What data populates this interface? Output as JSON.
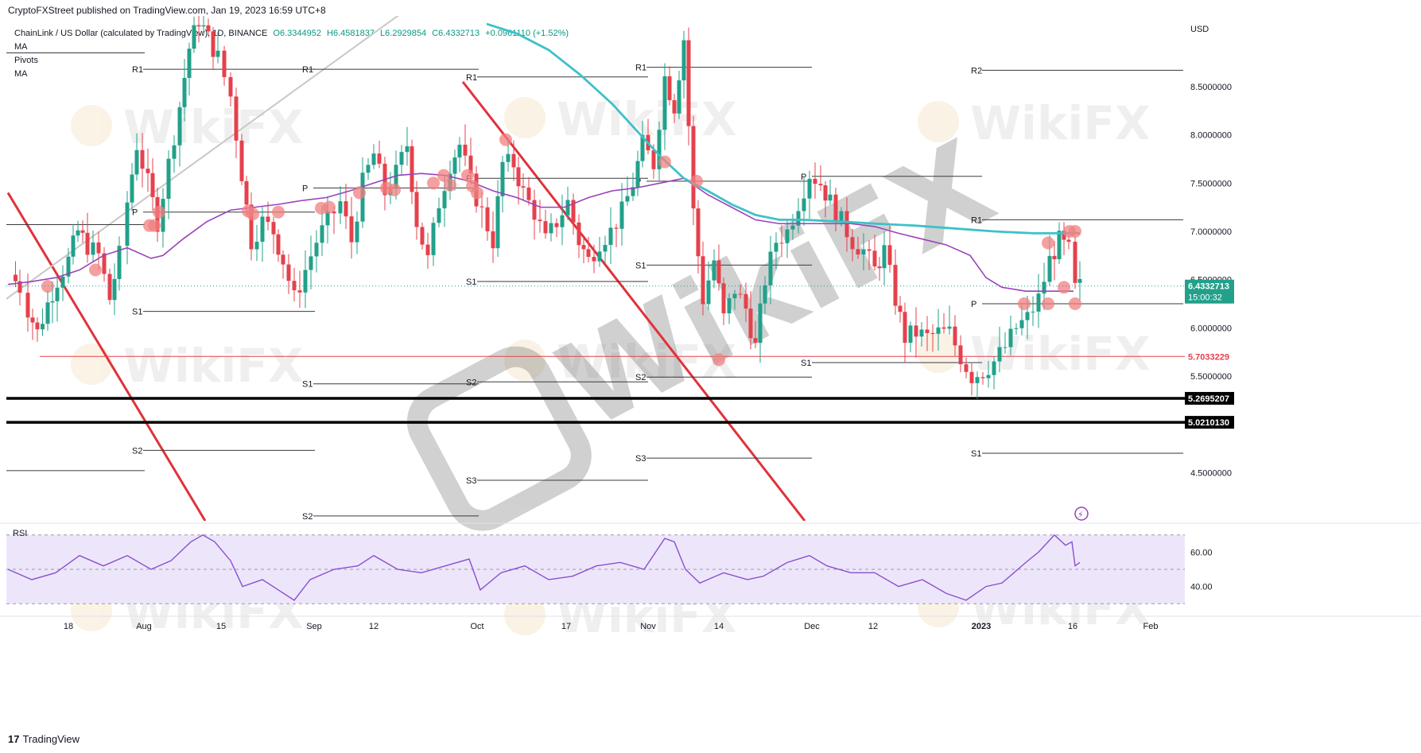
{
  "header": {
    "published": "CryptoFXStreet published on TradingView.com, Jan 19, 2023 16:59 UTC+8"
  },
  "legend": {
    "symbol": "ChainLink / US Dollar (calculated by TradingView), 1D, BINANCE",
    "o": "O6.3344952",
    "h": "H6.4581837",
    "l": "L6.2929854",
    "c": "C6.4332713",
    "chg": "+0.0961110 (+1.52%)",
    "indicators": [
      "MA",
      "Pivots",
      "MA"
    ]
  },
  "footer": {
    "brand_glyph": "17",
    "brand": "TradingView"
  },
  "watermark": {
    "text": "WikiFX"
  },
  "colors": {
    "up": "#22a08a",
    "down": "#e5414c",
    "ma_fast": "#9a42b8",
    "ma_slow": "#3ec1c9",
    "trendline": "#e0323c",
    "channel": "#c8c8c8",
    "marker": "#f08080",
    "rsi_line": "#8a4fd0",
    "rsi_band": "#ede6fb"
  },
  "chart_data": [
    {
      "type": "candlestick",
      "title": "ChainLink / US Dollar",
      "ylabel": "USD",
      "ylim": [
        4.0,
        9.2
      ],
      "y_ticks": [
        "8.5000000",
        "8.0000000",
        "7.5000000",
        "7.0000000",
        "6.5000000",
        "6.0000000",
        "5.5000000",
        "4.5000000"
      ],
      "x_ticks": [
        "18",
        "Aug",
        "15",
        "Sep",
        "12",
        "Oct",
        "17",
        "Nov",
        "14",
        "Dec",
        "12",
        "2023",
        "16",
        "Feb"
      ],
      "price_labels": [
        {
          "value": 6.4332713,
          "text": "6.4332713",
          "sub": "15:00:32",
          "style": "last"
        },
        {
          "value": 5.7033229,
          "text": "5.7033229",
          "style": "red"
        },
        {
          "value": 5.2695207,
          "text": "5.2695207",
          "style": "black"
        },
        {
          "value": 5.021013,
          "text": "5.0210130",
          "style": "black"
        }
      ],
      "horizontal_lines": [
        {
          "value": 5.7033229,
          "color": "red"
        },
        {
          "value": 5.2695207,
          "color": "black"
        },
        {
          "value": 5.021013,
          "color": "black"
        }
      ],
      "pivot_levels": [
        {
          "label": "R1",
          "x0": 180,
          "x1": 396,
          "value": 8.68
        },
        {
          "label": "P",
          "x0": 180,
          "x1": 396,
          "value": 7.2
        },
        {
          "label": "S1",
          "x0": 180,
          "x1": 396,
          "value": 6.17
        },
        {
          "label": "S2",
          "x0": 180,
          "x1": 396,
          "value": 4.73
        },
        {
          "label": "R1",
          "x0": 394,
          "x1": 602,
          "value": 8.68
        },
        {
          "label": "P",
          "x0": 394,
          "x1": 602,
          "value": 7.45
        },
        {
          "label": "S1",
          "x0": 394,
          "x1": 602,
          "value": 5.42
        },
        {
          "label": "S2",
          "x0": 394,
          "x1": 602,
          "value": 4.05
        },
        {
          "label": "R1",
          "x0": 600,
          "x1": 815,
          "value": 8.6
        },
        {
          "label": "P",
          "x0": 600,
          "x1": 815,
          "value": 7.55
        },
        {
          "label": "S1",
          "x0": 600,
          "x1": 815,
          "value": 6.48
        },
        {
          "label": "S2",
          "x0": 600,
          "x1": 815,
          "value": 5.44
        },
        {
          "label": "S3",
          "x0": 600,
          "x1": 815,
          "value": 4.42
        },
        {
          "label": "R1",
          "x0": 813,
          "x1": 1021,
          "value": 8.7
        },
        {
          "label": "P",
          "x0": 813,
          "x1": 1021,
          "value": 7.52
        },
        {
          "label": "S1",
          "x0": 813,
          "x1": 1021,
          "value": 6.65
        },
        {
          "label": "S2",
          "x0": 813,
          "x1": 1021,
          "value": 5.49
        },
        {
          "label": "S3",
          "x0": 813,
          "x1": 1021,
          "value": 4.65
        },
        {
          "label": "P",
          "x0": 1021,
          "x1": 1235,
          "value": 7.57
        },
        {
          "label": "S1",
          "x0": 1021,
          "x1": 1235,
          "value": 5.64
        },
        {
          "label": "R2",
          "x0": 1235,
          "x1": 1488,
          "value": 8.67
        },
        {
          "label": "R1",
          "x0": 1235,
          "x1": 1488,
          "value": 7.12
        },
        {
          "label": "P",
          "x0": 1235,
          "x1": 1488,
          "value": 6.25
        },
        {
          "label": "S1",
          "x0": 1235,
          "x1": 1488,
          "value": 4.7
        }
      ],
      "close_path": [
        [
          14,
          6.55
        ],
        [
          25,
          6.42
        ],
        [
          35,
          6.2
        ],
        [
          47,
          5.95
        ],
        [
          60,
          6.25
        ],
        [
          72,
          6.5
        ],
        [
          86,
          6.7
        ],
        [
          98,
          7.0
        ],
        [
          110,
          6.85
        ],
        [
          124,
          6.75
        ],
        [
          138,
          6.3
        ],
        [
          150,
          6.75
        ],
        [
          160,
          7.3
        ],
        [
          172,
          7.9
        ],
        [
          186,
          7.5
        ],
        [
          198,
          7.1
        ],
        [
          212,
          7.7
        ],
        [
          226,
          8.3
        ],
        [
          238,
          8.9
        ],
        [
          250,
          9.2
        ],
        [
          262,
          9.0
        ],
        [
          274,
          8.8
        ],
        [
          290,
          8.4
        ],
        [
          304,
          7.6
        ],
        [
          316,
          6.9
        ],
        [
          330,
          7.1
        ],
        [
          344,
          7.0
        ],
        [
          356,
          6.7
        ],
        [
          370,
          6.3
        ],
        [
          384,
          6.6
        ],
        [
          398,
          6.9
        ],
        [
          412,
          7.1
        ],
        [
          428,
          7.3
        ],
        [
          442,
          6.9
        ],
        [
          456,
          7.5
        ],
        [
          470,
          7.8
        ],
        [
          484,
          7.4
        ],
        [
          498,
          7.6
        ],
        [
          512,
          7.9
        ],
        [
          524,
          7.1
        ],
        [
          538,
          6.7
        ],
        [
          552,
          7.3
        ],
        [
          566,
          7.7
        ],
        [
          578,
          7.9
        ],
        [
          592,
          7.5
        ],
        [
          606,
          7.2
        ],
        [
          620,
          6.9
        ],
        [
          632,
          7.7
        ],
        [
          646,
          7.7
        ],
        [
          658,
          7.4
        ],
        [
          672,
          7.2
        ],
        [
          686,
          6.9
        ],
        [
          700,
          7.1
        ],
        [
          714,
          7.3
        ],
        [
          728,
          6.9
        ],
        [
          740,
          6.7
        ],
        [
          754,
          6.9
        ],
        [
          768,
          7.0
        ],
        [
          782,
          7.2
        ],
        [
          796,
          7.5
        ],
        [
          808,
          7.9
        ],
        [
          822,
          7.7
        ],
        [
          836,
          8.6
        ],
        [
          848,
          8.3
        ],
        [
          860,
          9.0
        ],
        [
          872,
          7.2
        ],
        [
          884,
          6.3
        ],
        [
          898,
          6.7
        ],
        [
          910,
          6.1
        ],
        [
          924,
          6.4
        ],
        [
          938,
          6.2
        ],
        [
          950,
          5.8
        ],
        [
          962,
          6.5
        ],
        [
          976,
          6.9
        ],
        [
          990,
          7.0
        ],
        [
          1004,
          7.3
        ],
        [
          1018,
          7.6
        ],
        [
          1032,
          7.5
        ],
        [
          1044,
          7.3
        ],
        [
          1058,
          7.1
        ],
        [
          1072,
          6.9
        ],
        [
          1086,
          6.8
        ],
        [
          1100,
          6.6
        ],
        [
          1112,
          6.8
        ],
        [
          1126,
          6.3
        ],
        [
          1138,
          5.9
        ],
        [
          1152,
          5.95
        ],
        [
          1166,
          5.9
        ],
        [
          1180,
          5.95
        ],
        [
          1194,
          5.95
        ],
        [
          1208,
          5.7
        ],
        [
          1222,
          5.5
        ],
        [
          1236,
          5.55
        ],
        [
          1250,
          5.65
        ],
        [
          1264,
          5.8
        ],
        [
          1278,
          6.0
        ],
        [
          1292,
          6.1
        ],
        [
          1306,
          6.3
        ],
        [
          1320,
          6.7
        ],
        [
          1332,
          6.9
        ],
        [
          1344,
          6.8
        ],
        [
          1352,
          6.4
        ],
        [
          1358,
          6.43
        ]
      ],
      "ma_fast": [
        [
          10,
          6.45
        ],
        [
          40,
          6.48
        ],
        [
          70,
          6.52
        ],
        [
          100,
          6.6
        ],
        [
          130,
          6.75
        ],
        [
          160,
          6.83
        ],
        [
          190,
          6.72
        ],
        [
          205,
          6.75
        ],
        [
          230,
          6.92
        ],
        [
          260,
          7.1
        ],
        [
          290,
          7.22
        ],
        [
          320,
          7.25
        ],
        [
          350,
          7.28
        ],
        [
          380,
          7.32
        ],
        [
          410,
          7.35
        ],
        [
          440,
          7.42
        ],
        [
          470,
          7.5
        ],
        [
          500,
          7.58
        ],
        [
          530,
          7.6
        ],
        [
          560,
          7.58
        ],
        [
          590,
          7.52
        ],
        [
          620,
          7.42
        ],
        [
          650,
          7.35
        ],
        [
          680,
          7.25
        ],
        [
          710,
          7.25
        ],
        [
          740,
          7.35
        ],
        [
          770,
          7.42
        ],
        [
          800,
          7.45
        ],
        [
          830,
          7.5
        ],
        [
          860,
          7.55
        ],
        [
          890,
          7.38
        ],
        [
          920,
          7.25
        ],
        [
          950,
          7.12
        ],
        [
          980,
          7.08
        ],
        [
          1010,
          7.08
        ],
        [
          1040,
          7.08
        ],
        [
          1070,
          7.08
        ],
        [
          1100,
          7.05
        ],
        [
          1130,
          6.98
        ],
        [
          1160,
          6.92
        ],
        [
          1190,
          6.86
        ],
        [
          1220,
          6.75
        ],
        [
          1240,
          6.52
        ],
        [
          1260,
          6.42
        ],
        [
          1290,
          6.38
        ],
        [
          1320,
          6.38
        ],
        [
          1350,
          6.38
        ]
      ],
      "ma_slow": [
        [
          612,
          9.15
        ],
        [
          650,
          9.05
        ],
        [
          690,
          8.88
        ],
        [
          730,
          8.62
        ],
        [
          770,
          8.32
        ],
        [
          800,
          8.05
        ],
        [
          830,
          7.78
        ],
        [
          860,
          7.55
        ],
        [
          890,
          7.42
        ],
        [
          920,
          7.28
        ],
        [
          950,
          7.17
        ],
        [
          980,
          7.12
        ],
        [
          1010,
          7.12
        ],
        [
          1060,
          7.1
        ],
        [
          1100,
          7.08
        ],
        [
          1150,
          7.06
        ],
        [
          1200,
          7.03
        ],
        [
          1250,
          7.0
        ],
        [
          1300,
          6.98
        ],
        [
          1358,
          6.98
        ]
      ],
      "markers": [
        [
          60,
          6.43
        ],
        [
          120,
          6.6
        ],
        [
          188,
          7.06
        ],
        [
          194,
          7.06
        ],
        [
          200,
          7.2
        ],
        [
          312,
          7.21
        ],
        [
          318,
          7.18
        ],
        [
          350,
          7.2
        ],
        [
          404,
          7.24
        ],
        [
          414,
          7.25
        ],
        [
          452,
          7.4
        ],
        [
          486,
          7.45
        ],
        [
          496,
          7.43
        ],
        [
          545,
          7.5
        ],
        [
          558,
          7.58
        ],
        [
          566,
          7.48
        ],
        [
          588,
          7.58
        ],
        [
          594,
          7.47
        ],
        [
          600,
          7.4
        ],
        [
          636,
          7.95
        ],
        [
          836,
          7.72
        ],
        [
          876,
          7.52
        ],
        [
          904,
          5.67
        ],
        [
          1288,
          6.25
        ],
        [
          1318,
          6.25
        ],
        [
          1318,
          6.88
        ],
        [
          1338,
          6.42
        ],
        [
          1345,
          7.0
        ],
        [
          1352,
          7.0
        ],
        [
          1352,
          6.25
        ]
      ],
      "trendlines": [
        {
          "name": "red-descending-1",
          "from": [
            10,
            7.4
          ],
          "to": [
            258,
            4.0
          ]
        },
        {
          "name": "red-descending-2",
          "from": [
            582,
            8.55
          ],
          "to": [
            1012,
            4.0
          ]
        },
        {
          "name": "grey-channel",
          "from": [
            8,
            6.3
          ],
          "to": [
            612,
            9.9
          ]
        }
      ]
    },
    {
      "type": "line",
      "title": "RSI",
      "ylim": [
        25,
        75
      ],
      "y_ticks": [
        "60.00",
        "40.00"
      ],
      "bands": [
        70,
        30
      ],
      "midline": 50,
      "values": [
        [
          10,
          50
        ],
        [
          40,
          44
        ],
        [
          70,
          48
        ],
        [
          100,
          58
        ],
        [
          130,
          52
        ],
        [
          160,
          58
        ],
        [
          190,
          50
        ],
        [
          215,
          55
        ],
        [
          240,
          66
        ],
        [
          255,
          70
        ],
        [
          270,
          66
        ],
        [
          290,
          55
        ],
        [
          305,
          40
        ],
        [
          330,
          44
        ],
        [
          350,
          38
        ],
        [
          370,
          32
        ],
        [
          390,
          44
        ],
        [
          420,
          50
        ],
        [
          450,
          52
        ],
        [
          470,
          58
        ],
        [
          500,
          50
        ],
        [
          530,
          48
        ],
        [
          560,
          52
        ],
        [
          590,
          56
        ],
        [
          604,
          38
        ],
        [
          630,
          48
        ],
        [
          660,
          52
        ],
        [
          690,
          44
        ],
        [
          720,
          46
        ],
        [
          750,
          52
        ],
        [
          780,
          54
        ],
        [
          810,
          50
        ],
        [
          836,
          68
        ],
        [
          848,
          66
        ],
        [
          862,
          50
        ],
        [
          880,
          42
        ],
        [
          910,
          48
        ],
        [
          940,
          44
        ],
        [
          960,
          46
        ],
        [
          990,
          54
        ],
        [
          1018,
          58
        ],
        [
          1040,
          52
        ],
        [
          1070,
          48
        ],
        [
          1100,
          48
        ],
        [
          1130,
          40
        ],
        [
          1160,
          44
        ],
        [
          1190,
          36
        ],
        [
          1215,
          32
        ],
        [
          1240,
          40
        ],
        [
          1260,
          42
        ],
        [
          1290,
          54
        ],
        [
          1306,
          60
        ],
        [
          1326,
          70
        ],
        [
          1340,
          64
        ],
        [
          1348,
          66
        ],
        [
          1352,
          52
        ],
        [
          1358,
          54
        ]
      ]
    }
  ]
}
